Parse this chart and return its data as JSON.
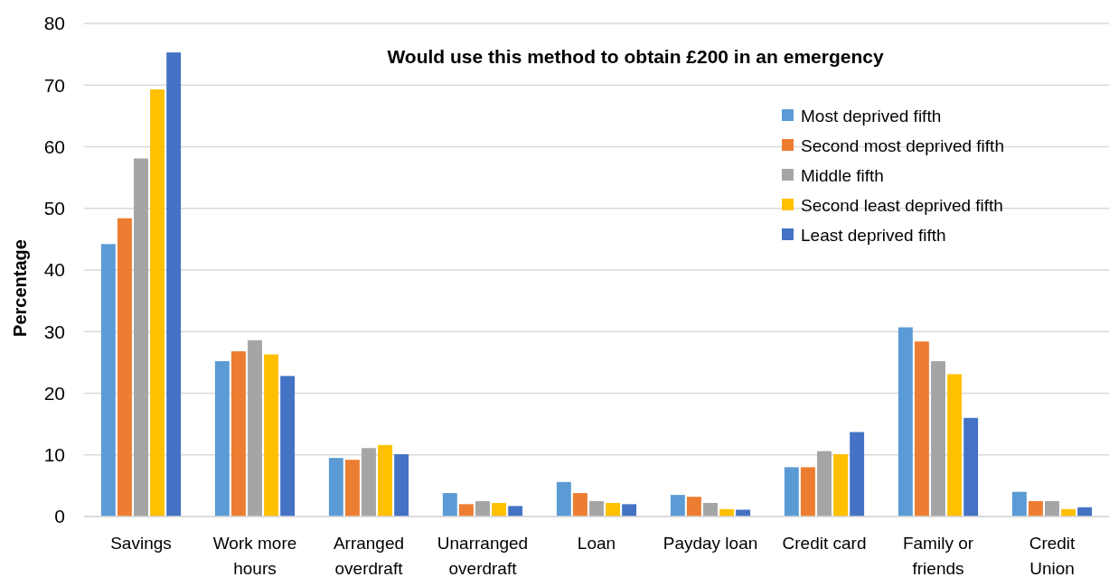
{
  "chart_data": {
    "type": "bar",
    "title": "Would use this method to obtain £200 in an emergency",
    "ylabel": "Percentage",
    "categories": [
      "Savings",
      "Work more hours",
      "Arranged overdraft",
      "Unarranged overdraft",
      "Loan",
      "Payday loan",
      "Credit card",
      "Family or friends",
      "Credit Union"
    ],
    "series": [
      {
        "name": "Most deprived fifth",
        "color": "#5b9bd5",
        "values": [
          44.2,
          25.2,
          9.5,
          3.8,
          5.6,
          3.5,
          8.0,
          30.7,
          4.0
        ]
      },
      {
        "name": "Second most deprived fifth",
        "color": "#ed7d31",
        "values": [
          48.4,
          26.8,
          9.2,
          2.0,
          3.8,
          3.2,
          8.0,
          28.4,
          2.5
        ]
      },
      {
        "name": "Middle fifth",
        "color": "#a5a5a5",
        "values": [
          58.1,
          28.6,
          11.1,
          2.5,
          2.5,
          2.2,
          10.6,
          25.2,
          2.5
        ]
      },
      {
        "name": "Second least deprived fifth",
        "color": "#ffc000",
        "values": [
          69.3,
          26.3,
          11.6,
          2.2,
          2.2,
          1.2,
          10.1,
          23.1,
          1.2
        ]
      },
      {
        "name": "Least deprived fifth",
        "color": "#4472c4",
        "values": [
          75.3,
          22.8,
          10.1,
          1.7,
          2.0,
          1.1,
          13.7,
          16.0,
          1.5
        ]
      }
    ],
    "ylim": [
      0,
      80
    ],
    "yticks": [
      0,
      10,
      20,
      30,
      40,
      50,
      60,
      70,
      80
    ],
    "grid": "y",
    "legend": "top right"
  }
}
